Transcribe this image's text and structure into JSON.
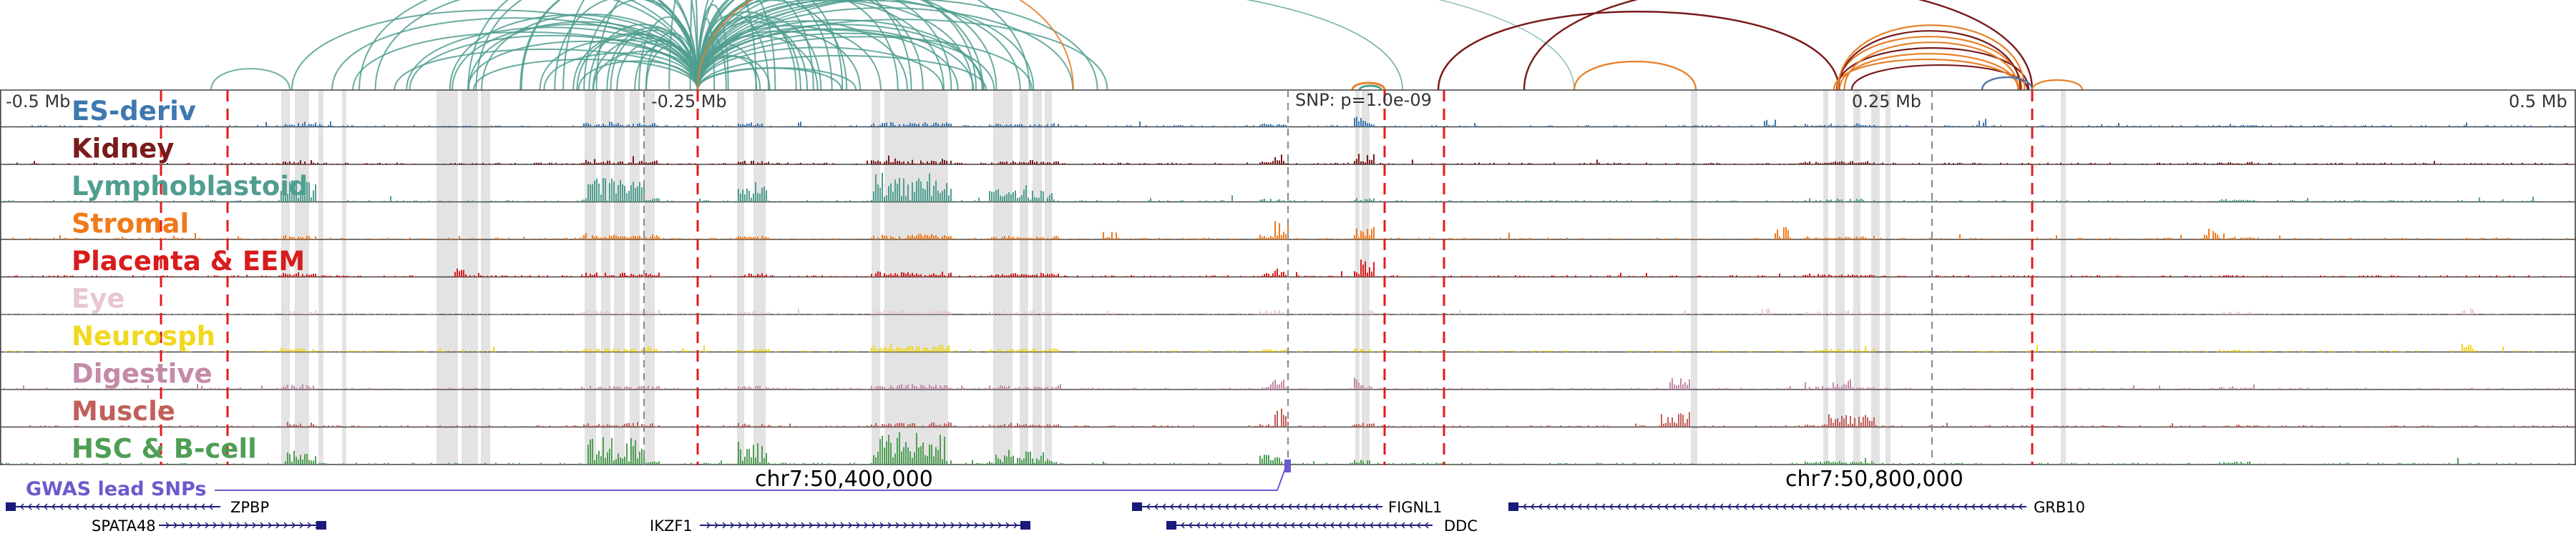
{
  "axis_labels": [
    "-0.5 Mb",
    "-0.25 Mb",
    "0.25 Mb",
    "0.5 Mb"
  ],
  "snp_label": "SNP: p=1.0e-09",
  "coord_labels": [
    "chr7:50,400,000",
    "chr7:50,800,000"
  ],
  "gwas_label": "GWAS lead SNPs",
  "colors": {
    "gwas": "#6a5acd",
    "gene": "#1a1a7a",
    "highlight": "#d9d9d9",
    "dashed": "#e41a1c",
    "arc_main": "#4f9e8f",
    "arc_orange": "#e8812a",
    "arc_dark": "#7a1a1a",
    "arc_blue": "#4a78a8"
  },
  "tracks": [
    {
      "name": "ES-deriv",
      "color": "#3f78b0"
    },
    {
      "name": "Kidney",
      "color": "#7a1a1a"
    },
    {
      "name": "Lymphoblastoid",
      "color": "#4f9e8f"
    },
    {
      "name": "Stromal",
      "color": "#f07a1a"
    },
    {
      "name": "Placenta & EEM",
      "color": "#d81c1c"
    },
    {
      "name": "Eye",
      "color": "#e8c7d0"
    },
    {
      "name": "Neurosph",
      "color": "#f2d81e"
    },
    {
      "name": "Digestive",
      "color": "#c48aa8"
    },
    {
      "name": "Muscle",
      "color": "#c0605a"
    },
    {
      "name": "HSC & B-cell",
      "color": "#4f9e55"
    }
  ],
  "genes": [
    {
      "name": "ZPBP",
      "strand": "-"
    },
    {
      "name": "SPATA48",
      "strand": "+"
    },
    {
      "name": "IKZF1",
      "strand": "+"
    },
    {
      "name": "FIGNL1",
      "strand": "-"
    },
    {
      "name": "DDC",
      "strand": "-"
    },
    {
      "name": "GRB10",
      "strand": "-"
    }
  ]
}
